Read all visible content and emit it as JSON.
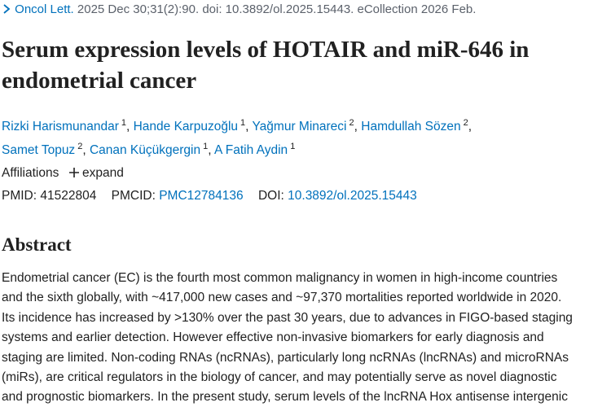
{
  "citation": {
    "journal": "Oncol Lett.",
    "details": "2025 Dec 30;31(2):90. doi: 10.3892/ol.2025.15443. eCollection 2026 Feb."
  },
  "title": "Serum expression levels of HOTAIR and miR-646 in endometrial cancer",
  "separator": ",",
  "authors": [
    {
      "name": "Rizki Harismunandar",
      "affiliation": "1"
    },
    {
      "name": "Hande Karpuzoğlu",
      "affiliation": "1"
    },
    {
      "name": "Yağmur Minareci",
      "affiliation": "2"
    },
    {
      "name": "Hamdullah Sözen",
      "affiliation": "2"
    },
    {
      "name": "Samet Topuz",
      "affiliation": "2"
    },
    {
      "name": "Canan Küçükgergin",
      "affiliation": "1"
    },
    {
      "name": "A Fatih Aydin",
      "affiliation": "1"
    }
  ],
  "affiliations": {
    "label": "Affiliations",
    "action": "expand"
  },
  "identifiers": [
    {
      "label": "PMID:",
      "value": "41522804"
    },
    {
      "label": "PMCID:",
      "value": "PMC12784136"
    },
    {
      "label": "DOI:",
      "value": "10.3892/ol.2025.15443"
    }
  ],
  "abstract": {
    "heading": "Abstract",
    "lines": [
      "Endometrial cancer (EC) is the fourth most common malignancy in women in high-income countries",
      "and the sixth globally, with ~417,000 new cases and ~97,370 mortalities reported worldwide in 2020.",
      "Its incidence has increased by >130% over the past 30 years, due to advances in FIGO-based staging",
      "systems and earlier detection. However effective non-invasive biomarkers for early diagnosis and",
      "staging are limited. Non-coding RNAs (ncRNAs), particularly long ncRNAs (lncRNAs) and microRNAs",
      "(miRs), are critical regulators in the biology of cancer, and may potentially serve as novel diagnostic",
      "and prognostic biomarkers. In the present study, serum levels of the lncRNA Hox antisense intergenic"
    ]
  }
}
